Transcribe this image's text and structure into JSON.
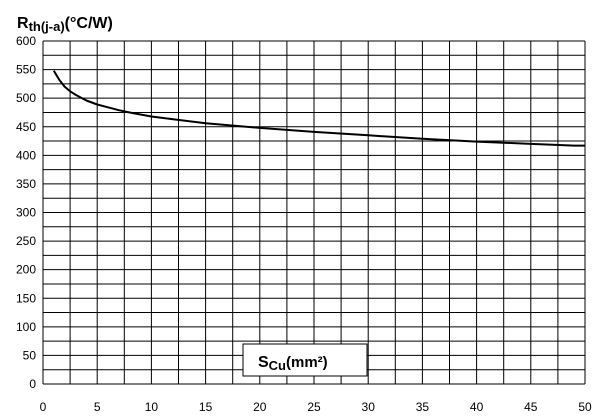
{
  "chart_data": {
    "type": "line",
    "title_main": "R",
    "title_sub": "th(j-a)",
    "title_unit": "(°C/W)",
    "xlabel_main": "S",
    "xlabel_sub": "Cu",
    "xlabel_unit": "(mm²)",
    "xlim": [
      0,
      50
    ],
    "ylim": [
      0,
      600
    ],
    "xticks": [
      0,
      5,
      10,
      15,
      20,
      25,
      30,
      35,
      40,
      45,
      50
    ],
    "yticks": [
      0,
      50,
      100,
      150,
      200,
      250,
      300,
      350,
      400,
      450,
      500,
      550,
      600
    ],
    "grid": true,
    "series": [
      {
        "color": "#000000",
        "x": [
          1,
          1.5,
          2,
          2.5,
          3,
          4,
          5,
          6,
          7,
          8,
          10,
          12,
          15,
          20,
          25,
          30,
          35,
          40,
          45,
          49,
          50
        ],
        "y": [
          548,
          532,
          520,
          512,
          506,
          496,
          489,
          484,
          479,
          475,
          468,
          463,
          456,
          448,
          441,
          435,
          429,
          424,
          420,
          417,
          417
        ]
      }
    ]
  }
}
